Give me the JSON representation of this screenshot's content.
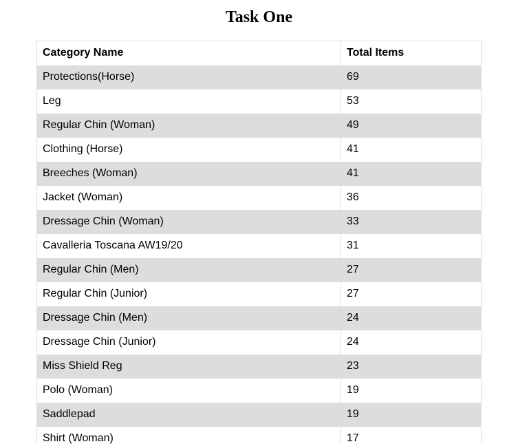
{
  "page": {
    "title": "Task One"
  },
  "table": {
    "columns": [
      "Category Name",
      "Total Items"
    ],
    "rows": [
      {
        "category": "Protections(Horse)",
        "total": "69"
      },
      {
        "category": "Leg",
        "total": "53"
      },
      {
        "category": "Regular Chin (Woman)",
        "total": "49"
      },
      {
        "category": "Clothing (Horse)",
        "total": "41"
      },
      {
        "category": "Breeches (Woman)",
        "total": "41"
      },
      {
        "category": "Jacket (Woman)",
        "total": "36"
      },
      {
        "category": "Dressage Chin (Woman)",
        "total": "33"
      },
      {
        "category": "Cavalleria Toscana AW19/20",
        "total": "31"
      },
      {
        "category": "Regular Chin (Men)",
        "total": "27"
      },
      {
        "category": "Regular Chin (Junior)",
        "total": "27"
      },
      {
        "category": "Dressage Chin (Men)",
        "total": "24"
      },
      {
        "category": "Dressage Chin (Junior)",
        "total": "24"
      },
      {
        "category": "Miss Shield Reg",
        "total": "23"
      },
      {
        "category": "Polo (Woman)",
        "total": "19"
      },
      {
        "category": "Saddlepad",
        "total": "19"
      },
      {
        "category": "Shirt (Woman)",
        "total": "17"
      }
    ]
  },
  "colors": {
    "stripe": "#dddddd",
    "border": "#dddddd",
    "background": "#ffffff"
  }
}
